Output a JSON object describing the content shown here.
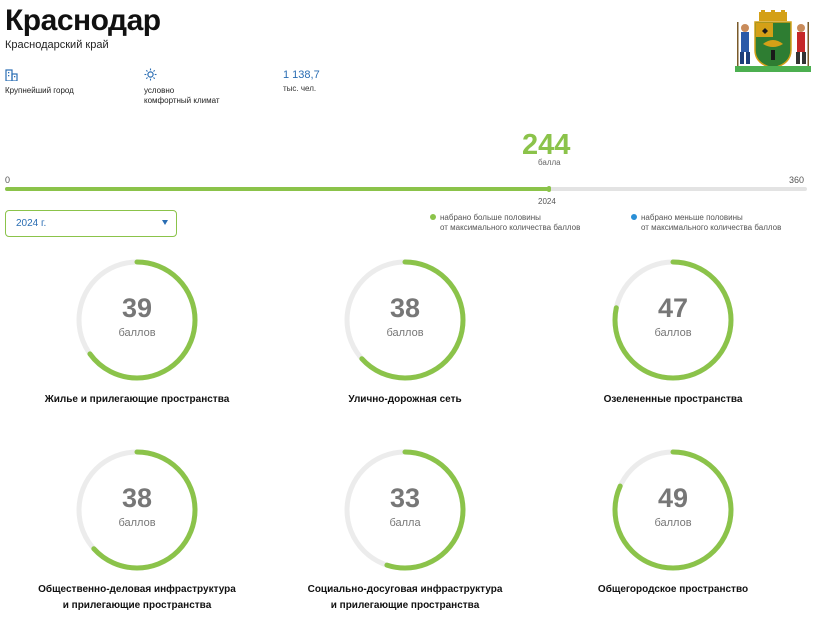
{
  "header": {
    "city": "Краснодар",
    "region": "Краснодарский край"
  },
  "stats": [
    {
      "icon": "buildings-icon",
      "label": "Крупнейший город"
    },
    {
      "icon": "sun-icon",
      "label_line1": "условно",
      "label_line2": "комфортный климат"
    },
    {
      "value": "1 138,7",
      "unit": "тыс. чел."
    }
  ],
  "total": {
    "score": 244,
    "score_text": "244",
    "unit": "балла",
    "min": "0",
    "max": "360",
    "max_value": 360,
    "year": "2024"
  },
  "year_select": {
    "value": "2024 г."
  },
  "legend": [
    {
      "line1": "набрано больше половины",
      "line2": "от максимального количества баллов",
      "color": "#8bc34a"
    },
    {
      "line1": "набрано меньше половины",
      "line2": "от максимального количества баллов",
      "color": "#2a8fd6"
    }
  ],
  "categories": [
    {
      "score": 39,
      "score_text": "39",
      "unit": "баллов",
      "fraction": 0.65,
      "label_line1": "Жилье и прилегающие пространства",
      "label_line2": ""
    },
    {
      "score": 38,
      "score_text": "38",
      "unit": "баллов",
      "fraction": 0.633,
      "label_line1": "Улично-дорожная сеть",
      "label_line2": ""
    },
    {
      "score": 47,
      "score_text": "47",
      "unit": "баллов",
      "fraction": 0.783,
      "label_line1": "Озелененные пространства",
      "label_line2": ""
    },
    {
      "score": 38,
      "score_text": "38",
      "unit": "баллов",
      "fraction": 0.633,
      "label_line1": "Общественно-деловая инфраструктура",
      "label_line2": "и прилегающие пространства"
    },
    {
      "score": 33,
      "score_text": "33",
      "unit": "балла",
      "fraction": 0.55,
      "label_line1": "Социально-досуговая инфраструктура",
      "label_line2": "и прилегающие пространства"
    },
    {
      "score": 49,
      "score_text": "49",
      "unit": "баллов",
      "fraction": 0.817,
      "label_line1": "Общегородское пространство",
      "label_line2": ""
    }
  ],
  "colors": {
    "accent_green": "#8bc34a",
    "accent_blue": "#2a6db3",
    "track_grey": "#ececec"
  }
}
